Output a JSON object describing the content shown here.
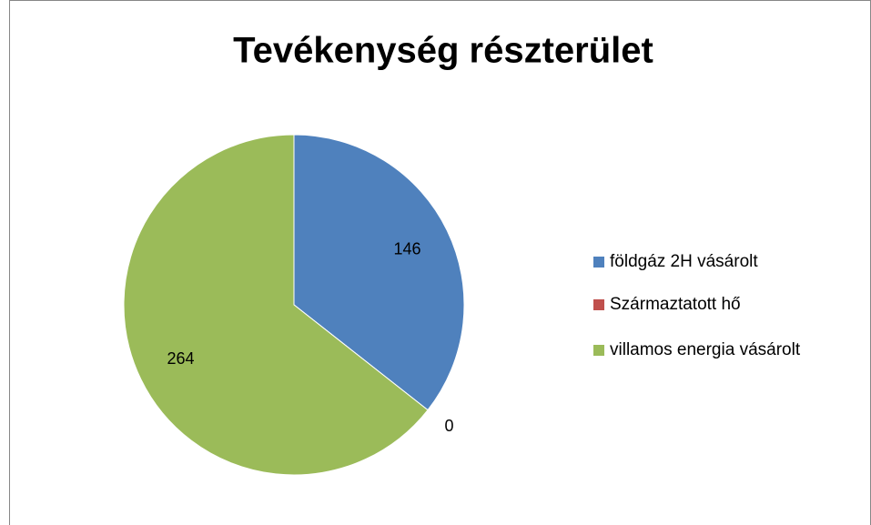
{
  "chart_data": {
    "type": "pie",
    "title": "Tevékenység részterület",
    "categories": [
      "földgáz 2H vásárolt",
      "Származtatott hő",
      "villamos energia vásárolt"
    ],
    "values": [
      146,
      0,
      264
    ],
    "colors": [
      "#4f81bd",
      "#c0504d",
      "#9bbb59"
    ],
    "legend": "right"
  }
}
